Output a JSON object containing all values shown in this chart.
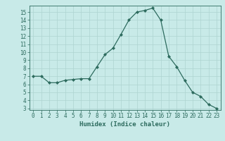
{
  "x": [
    0,
    1,
    2,
    3,
    4,
    5,
    6,
    7,
    8,
    9,
    10,
    11,
    12,
    13,
    14,
    15,
    16,
    17,
    18,
    19,
    20,
    21,
    22,
    23
  ],
  "y": [
    7.0,
    7.0,
    6.2,
    6.2,
    6.5,
    6.6,
    6.7,
    6.7,
    8.2,
    9.7,
    10.5,
    12.2,
    14.0,
    15.0,
    15.2,
    15.5,
    14.0,
    9.5,
    8.2,
    6.5,
    5.0,
    4.5,
    3.5,
    3.0
  ],
  "xlabel": "Humidex (Indice chaleur)",
  "xlim": [
    -0.5,
    23.5
  ],
  "ylim": [
    2.8,
    15.8
  ],
  "yticks": [
    3,
    4,
    5,
    6,
    7,
    8,
    9,
    10,
    11,
    12,
    13,
    14,
    15
  ],
  "xticks": [
    0,
    1,
    2,
    3,
    4,
    5,
    6,
    7,
    8,
    9,
    10,
    11,
    12,
    13,
    14,
    15,
    16,
    17,
    18,
    19,
    20,
    21,
    22,
    23
  ],
  "line_color": "#2d6b5e",
  "marker": "D",
  "marker_size": 2.0,
  "bg_color": "#c8eae8",
  "grid_color": "#aed4d0",
  "label_fontsize": 6.5,
  "tick_fontsize": 5.5
}
